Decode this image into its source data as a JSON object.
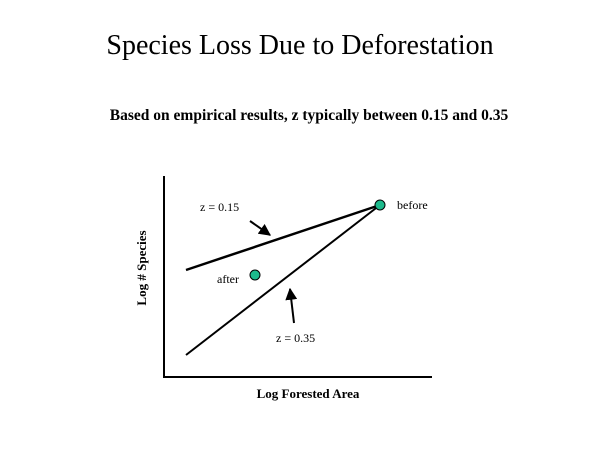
{
  "slide": {
    "title": "Species Loss Due to Deforestation",
    "subtitle": "Based on empirical results, z typically between 0.15 and 0.35"
  },
  "diagram": {
    "x_axis_label": "Log Forested Area",
    "y_axis_label": "Log # Species",
    "lines": [
      {
        "label": "z = 0.15",
        "z": 0.15
      },
      {
        "label": "z = 0.35",
        "z": 0.35
      }
    ],
    "points": [
      {
        "label": "before",
        "color": "#1dba8c"
      },
      {
        "label": "after",
        "color": "#1dba8c"
      }
    ]
  }
}
